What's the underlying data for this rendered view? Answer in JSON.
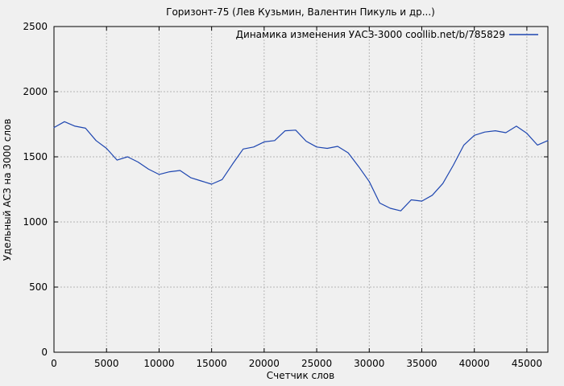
{
  "colors": {
    "background": "#f0f0f0",
    "grid": "#b5b5b5",
    "axis": "#000000",
    "text": "#000000",
    "line": "#1e46b0"
  },
  "chart_data": {
    "type": "line",
    "title": "Горизонт-75 (Лев Кузьмин, Валентин Пикуль и др...)",
    "legend": "Динамика изменения УАСЗ-3000 coollib.net/b/785829",
    "xlabel": "Счетчик слов",
    "ylabel": "Удельный АСЗ на 3000 слов",
    "xlim": [
      0,
      47000
    ],
    "ylim": [
      0,
      2500
    ],
    "x_ticks": [
      0,
      5000,
      10000,
      15000,
      20000,
      25000,
      30000,
      35000,
      40000,
      45000
    ],
    "y_ticks": [
      0,
      500,
      1000,
      1500,
      2000,
      2500
    ],
    "grid": true,
    "legend_position": "top-right-inside",
    "series": [
      {
        "name": "Динамика изменения УАСЗ-3000 coollib.net/b/785829",
        "color": "#1e46b0",
        "x": [
          0,
          1000,
          2000,
          3000,
          4000,
          5000,
          6000,
          7000,
          8000,
          9000,
          10000,
          11000,
          12000,
          13000,
          14000,
          15000,
          16000,
          17000,
          18000,
          19000,
          20000,
          21000,
          22000,
          23000,
          24000,
          25000,
          26000,
          27000,
          28000,
          29000,
          30000,
          31000,
          32000,
          33000,
          34000,
          35000,
          36000,
          37000,
          38000,
          39000,
          40000,
          41000,
          42000,
          43000,
          44000,
          45000,
          46000,
          47000
        ],
        "values": [
          1725,
          1770,
          1735,
          1720,
          1625,
          1565,
          1475,
          1500,
          1460,
          1405,
          1365,
          1385,
          1395,
          1340,
          1315,
          1290,
          1325,
          1445,
          1560,
          1575,
          1615,
          1625,
          1700,
          1705,
          1620,
          1575,
          1565,
          1580,
          1530,
          1425,
          1310,
          1145,
          1105,
          1085,
          1170,
          1160,
          1205,
          1295,
          1435,
          1590,
          1665,
          1690,
          1700,
          1685,
          1735,
          1680,
          1590,
          1625
        ]
      }
    ]
  }
}
